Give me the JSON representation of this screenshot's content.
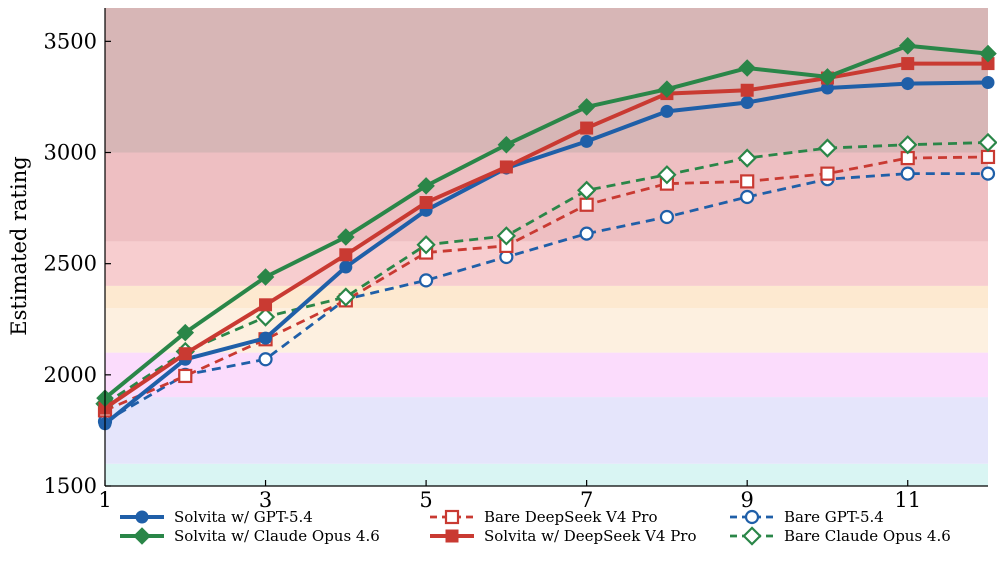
{
  "chart_data": {
    "type": "line",
    "title": "",
    "xlabel": "",
    "ylabel": "Estimated rating",
    "xlim": [
      1,
      12
    ],
    "ylim": [
      1500,
      3650
    ],
    "x_ticks": [
      1,
      3,
      5,
      7,
      9,
      11
    ],
    "y_ticks": [
      1500,
      2000,
      2500,
      3000,
      3500
    ],
    "x_tick_labels": [
      "1",
      "3",
      "5",
      "7",
      "9",
      "11"
    ],
    "y_tick_labels": [
      "1500",
      "2000",
      "2500",
      "3000",
      "3500"
    ],
    "grid": false,
    "legend_position": "bottom",
    "bands": [
      {
        "from": 1500,
        "to": 1600,
        "color": "#d9f5f3"
      },
      {
        "from": 1600,
        "to": 1900,
        "color": "#e5e5fb"
      },
      {
        "from": 1900,
        "to": 2100,
        "color": "#fbdcfc"
      },
      {
        "from": 2100,
        "to": 2300,
        "color": "#fdf0e0"
      },
      {
        "from": 2300,
        "to": 2400,
        "color": "#fde9d0"
      },
      {
        "from": 2400,
        "to": 2600,
        "color": "#f7cdcf"
      },
      {
        "from": 2600,
        "to": 3000,
        "color": "#eebfc2"
      },
      {
        "from": 3000,
        "to": 3650,
        "color": "#d7b6b6"
      }
    ],
    "x": [
      1,
      2,
      3,
      4,
      5,
      6,
      7,
      8,
      9,
      10,
      11,
      12
    ],
    "series": [
      {
        "name": "Solvita w/ GPT-5.4",
        "color": "#1f5fa8",
        "marker": "circle",
        "filled": true,
        "dashed": false,
        "values": [
          1780,
          2070,
          2165,
          2485,
          2740,
          2930,
          3050,
          3185,
          3225,
          3290,
          3310,
          3315
        ]
      },
      {
        "name": "Solvita w/ DeepSeek V4 Pro",
        "color": "#c93a32",
        "marker": "square",
        "filled": true,
        "dashed": false,
        "values": [
          1850,
          2095,
          2315,
          2540,
          2775,
          2935,
          3110,
          3265,
          3280,
          3335,
          3400,
          3400
        ]
      },
      {
        "name": "Solvita w/ Claude Opus 4.6",
        "color": "#2a8648",
        "marker": "diamond",
        "filled": true,
        "dashed": false,
        "values": [
          1895,
          2190,
          2440,
          2620,
          2850,
          3035,
          3205,
          3285,
          3380,
          3340,
          3480,
          3445
        ]
      },
      {
        "name": "Bare GPT-5.4",
        "color": "#1f5fa8",
        "marker": "circle",
        "filled": false,
        "dashed": true,
        "values": [
          1790,
          2000,
          2070,
          2340,
          2425,
          2530,
          2635,
          2710,
          2800,
          2880,
          2905,
          2905
        ]
      },
      {
        "name": "Bare DeepSeek V4 Pro",
        "color": "#c93a32",
        "marker": "square",
        "filled": false,
        "dashed": true,
        "values": [
          1840,
          1995,
          2160,
          2335,
          2550,
          2580,
          2765,
          2860,
          2870,
          2905,
          2975,
          2980
        ]
      },
      {
        "name": "Bare Claude Opus 4.6",
        "color": "#2a8648",
        "marker": "diamond",
        "filled": false,
        "dashed": true,
        "values": [
          1870,
          2105,
          2260,
          2350,
          2585,
          2625,
          2830,
          2900,
          2975,
          3020,
          3035,
          3045
        ]
      }
    ],
    "legend_order": [
      0,
      2,
      4,
      1,
      3,
      5
    ]
  }
}
